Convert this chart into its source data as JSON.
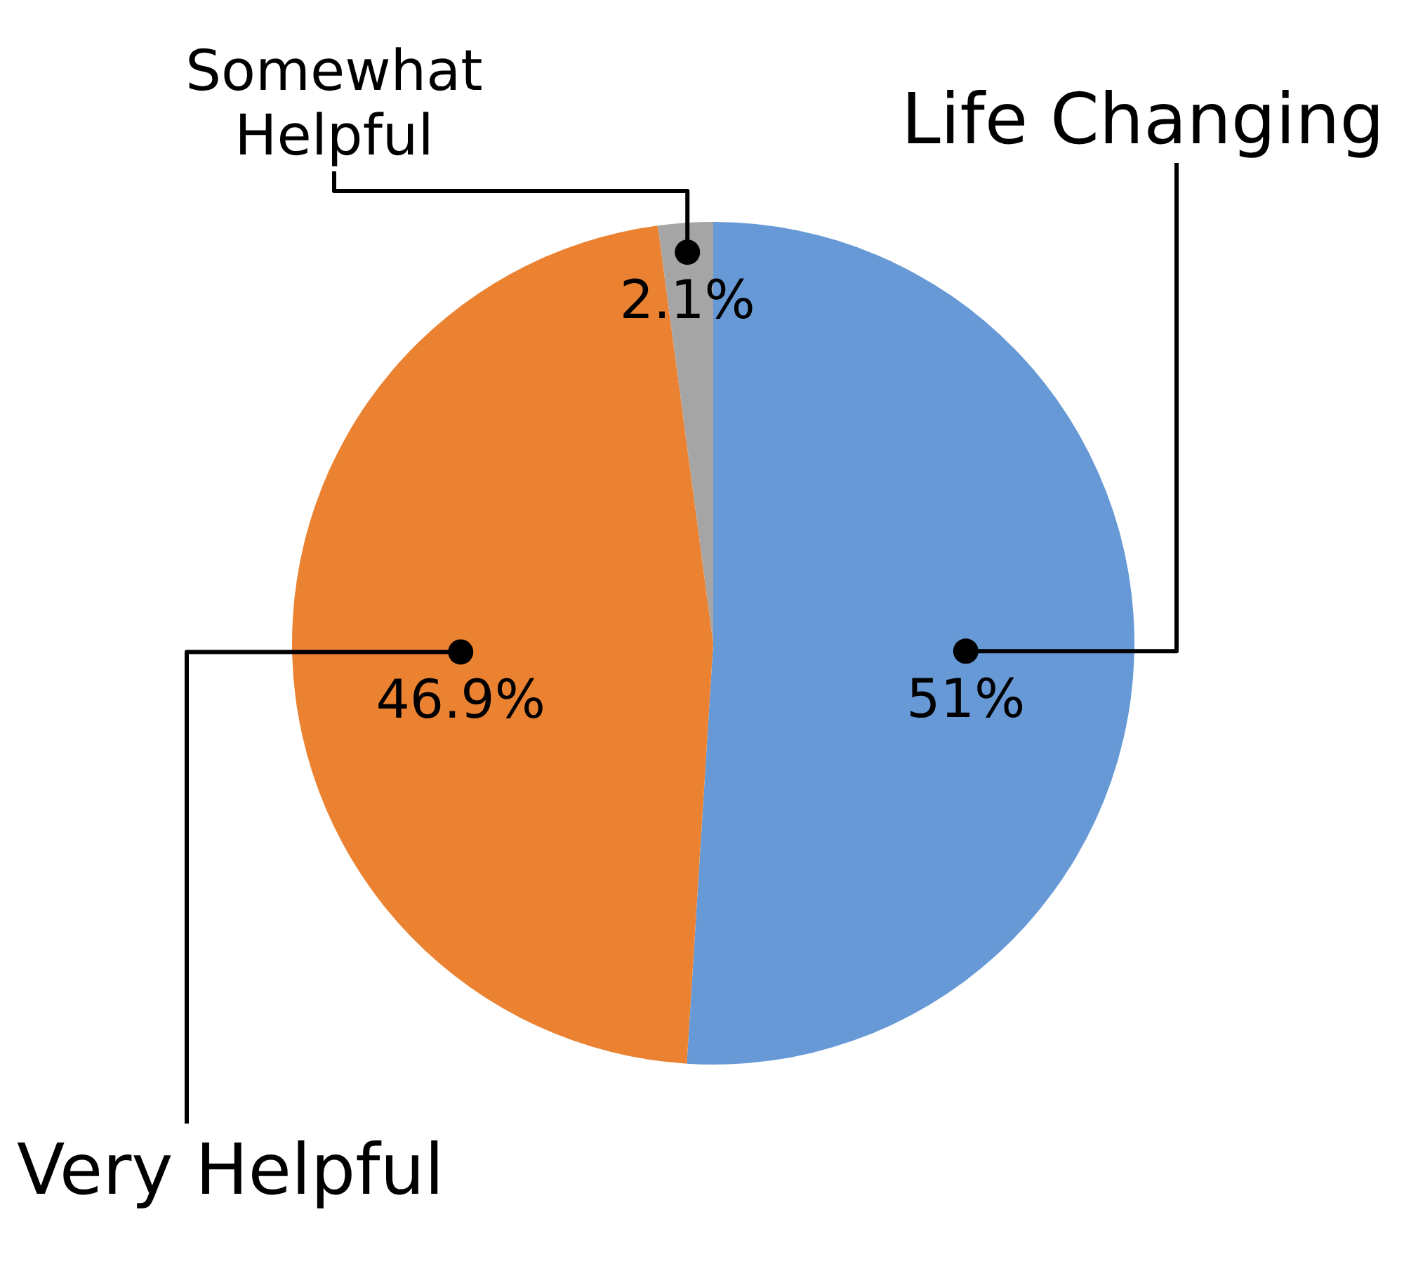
{
  "chart_data": {
    "type": "pie",
    "categories": [
      "Life Changing",
      "Very Helpful",
      "Somewhat Helpful"
    ],
    "values": [
      51,
      46.9,
      2.1
    ],
    "value_labels": [
      "51%",
      "46.9%",
      "2.1%"
    ],
    "colors": [
      "#6699d5",
      "#eb8232",
      "#a5a5a5"
    ]
  }
}
